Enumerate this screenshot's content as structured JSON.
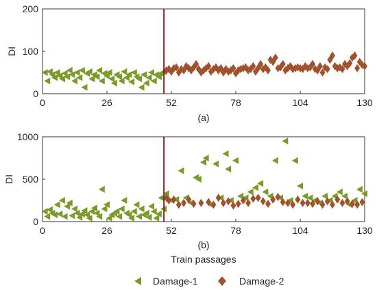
{
  "colors": {
    "damage1": "#7a9a2a",
    "damage2": "#a0522d",
    "divider": "#8b1a1a",
    "axis": "#333333"
  },
  "legend": {
    "damage1_label": "Damage-1",
    "damage2_label": "Damage-2"
  },
  "chart_data": [
    {
      "type": "scatter",
      "panel_label": "(a)",
      "xlabel": "",
      "ylabel": "DI",
      "xlim": [
        0,
        130
      ],
      "ylim": [
        0,
        200
      ],
      "xticks": [
        0,
        26,
        52,
        78,
        104,
        130
      ],
      "yticks": [
        0,
        100,
        200
      ],
      "divider_x": 49,
      "series": [
        {
          "name": "Damage-1",
          "marker": "triangle-left",
          "x": [
            1,
            2,
            3,
            4,
            5,
            6,
            7,
            8,
            9,
            10,
            11,
            12,
            13,
            14,
            15,
            16,
            17,
            18,
            19,
            20,
            21,
            22,
            23,
            24,
            25,
            26,
            27,
            28,
            29,
            30,
            31,
            32,
            33,
            34,
            35,
            36,
            37,
            38,
            39,
            40,
            41,
            42,
            43,
            44,
            45,
            46,
            47,
            48,
            49
          ],
          "y": [
            50,
            30,
            52,
            45,
            38,
            50,
            42,
            35,
            48,
            40,
            55,
            45,
            30,
            50,
            38,
            55,
            15,
            48,
            52,
            35,
            45,
            40,
            55,
            30,
            48,
            42,
            50,
            35,
            25,
            45,
            40,
            30,
            52,
            38,
            45,
            28,
            50,
            40,
            35,
            15,
            45,
            25,
            38,
            50,
            30,
            45,
            40,
            48,
            52
          ]
        },
        {
          "name": "Damage-2",
          "marker": "diamond",
          "x": [
            50,
            51,
            52,
            53,
            54,
            55,
            56,
            57,
            58,
            59,
            60,
            61,
            62,
            63,
            64,
            65,
            66,
            67,
            68,
            69,
            70,
            71,
            72,
            73,
            74,
            75,
            76,
            77,
            78,
            79,
            80,
            81,
            82,
            83,
            84,
            85,
            86,
            87,
            88,
            89,
            90,
            91,
            92,
            93,
            94,
            95,
            96,
            97,
            98,
            99,
            100,
            101,
            102,
            103,
            104,
            105,
            106,
            107,
            108,
            109,
            110,
            111,
            112,
            113,
            114,
            115,
            116,
            117,
            118,
            119,
            120,
            121,
            122,
            123,
            124,
            125,
            126,
            127,
            128,
            129,
            130
          ],
          "y": [
            55,
            58,
            52,
            60,
            62,
            50,
            58,
            55,
            65,
            60,
            55,
            62,
            70,
            58,
            50,
            55,
            60,
            65,
            52,
            58,
            62,
            55,
            60,
            50,
            58,
            52,
            55,
            60,
            48,
            55,
            58,
            60,
            62,
            55,
            58,
            65,
            52,
            60,
            70,
            58,
            62,
            55,
            80,
            75,
            85,
            60,
            62,
            70,
            55,
            60,
            65,
            58,
            60,
            62,
            60,
            58,
            65,
            60,
            62,
            70,
            58,
            55,
            65,
            50,
            62,
            58,
            80,
            90,
            65,
            60,
            62,
            58,
            70,
            65,
            72,
            85,
            90,
            60,
            75,
            68,
            65
          ]
        }
      ]
    },
    {
      "type": "scatter",
      "panel_label": "(b)",
      "xlabel": "Train passages",
      "ylabel": "DI",
      "xlim": [
        0,
        130
      ],
      "ylim": [
        0,
        1000
      ],
      "xticks": [
        0,
        26,
        52,
        78,
        104,
        130
      ],
      "yticks": [
        0,
        500,
        1000
      ],
      "divider_x": 49,
      "series": [
        {
          "name": "Damage-1",
          "marker": "triangle-left",
          "x": [
            1,
            2,
            3,
            4,
            5,
            6,
            7,
            8,
            9,
            10,
            11,
            12,
            13,
            14,
            15,
            16,
            17,
            18,
            19,
            20,
            21,
            22,
            23,
            24,
            25,
            26,
            27,
            28,
            29,
            30,
            31,
            32,
            33,
            34,
            35,
            36,
            37,
            38,
            39,
            40,
            41,
            42,
            43,
            44,
            45,
            46,
            47,
            48,
            49,
            50,
            52,
            54,
            56,
            58,
            60,
            62,
            63,
            65,
            66,
            68,
            70,
            72,
            74,
            75,
            76,
            78,
            80,
            82,
            84,
            86,
            88,
            90,
            92,
            94,
            96,
            98,
            100,
            102,
            104,
            106,
            108,
            110,
            112,
            114,
            116,
            118,
            120,
            122,
            124,
            126,
            128,
            130
          ],
          "y": [
            120,
            60,
            140,
            100,
            80,
            200,
            90,
            250,
            60,
            180,
            220,
            70,
            150,
            100,
            50,
            90,
            130,
            80,
            40,
            120,
            160,
            100,
            60,
            380,
            150,
            200,
            40,
            80,
            100,
            120,
            60,
            150,
            250,
            100,
            80,
            40,
            120,
            200,
            60,
            150,
            80,
            100,
            50,
            180,
            120,
            40,
            90,
            280,
            150,
            330,
            250,
            260,
            600,
            280,
            220,
            520,
            500,
            700,
            750,
            200,
            680,
            280,
            800,
            620,
            250,
            720,
            300,
            280,
            350,
            400,
            450,
            350,
            300,
            720,
            280,
            950,
            250,
            720,
            420,
            300,
            280,
            250,
            220,
            300,
            250,
            300,
            350,
            300,
            200,
            250,
            380,
            330
          ]
        },
        {
          "name": "Damage-2",
          "marker": "diamond",
          "x": [
            50,
            51,
            53,
            55,
            57,
            59,
            61,
            64,
            67,
            69,
            71,
            73,
            75,
            77,
            79,
            81,
            83,
            85,
            87,
            89,
            91,
            93,
            95,
            97,
            99,
            101,
            103,
            105,
            107,
            109,
            111,
            113,
            115,
            117,
            119,
            121,
            123,
            125,
            127,
            129
          ],
          "y": [
            280,
            250,
            260,
            200,
            220,
            260,
            210,
            220,
            230,
            200,
            280,
            220,
            240,
            190,
            210,
            250,
            220,
            270,
            280,
            240,
            210,
            260,
            290,
            230,
            220,
            200,
            260,
            220,
            220,
            210,
            240,
            200,
            240,
            200,
            260,
            220,
            240,
            210,
            200,
            230
          ]
        }
      ]
    }
  ]
}
